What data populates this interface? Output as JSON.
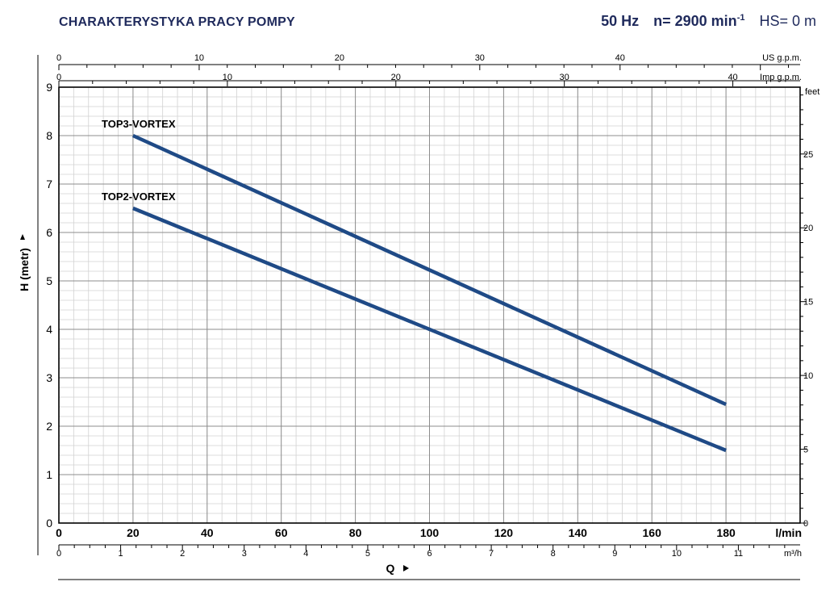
{
  "header": {
    "title": "CHARAKTERYSTYKA PRACY POMPY",
    "freq": "50 Hz",
    "speed_prefix": "n= 2900 min",
    "speed_exp": "-1",
    "hs": "HS= 0 m"
  },
  "chart_data": {
    "type": "line",
    "series": [
      {
        "name": "TOP3-VORTEX",
        "x": [
          20,
          180
        ],
        "y": [
          8.0,
          2.45
        ]
      },
      {
        "name": "TOP2-VORTEX",
        "x": [
          20,
          180
        ],
        "y": [
          6.5,
          1.5
        ]
      }
    ],
    "xlabel": "Q",
    "ylabel": "H (metr)",
    "xlim": [
      0,
      200
    ],
    "ylim": [
      0,
      9
    ],
    "x_unit": "l/min",
    "x_ticks": [
      "0",
      "20",
      "40",
      "60",
      "80",
      "100",
      "120",
      "140",
      "160",
      "180"
    ],
    "y_ticks": [
      "0",
      "1",
      "2",
      "3",
      "4",
      "5",
      "6",
      "7",
      "8",
      "9"
    ],
    "axis_us": {
      "unit": "US g.p.m.",
      "ticks": [
        "0",
        "10",
        "20",
        "30",
        "40"
      ],
      "values": [
        0,
        10,
        20,
        30,
        40
      ]
    },
    "axis_imp": {
      "unit": "Imp g.p.m.",
      "ticks": [
        "0",
        "10",
        "20",
        "30",
        "40"
      ],
      "values": [
        0,
        10,
        20,
        30,
        40
      ]
    },
    "axis_m3h": {
      "unit": "m³/h",
      "ticks": [
        "0",
        "1",
        "2",
        "3",
        "4",
        "5",
        "6",
        "7",
        "8",
        "9",
        "10",
        "11"
      ],
      "values": [
        0,
        1,
        2,
        3,
        4,
        5,
        6,
        7,
        8,
        9,
        10,
        11
      ]
    },
    "axis_feet": {
      "unit": "feet",
      "ticks": [
        "0",
        "5",
        "10",
        "15",
        "20",
        "25"
      ],
      "values": [
        0,
        5,
        10,
        15,
        20,
        25
      ]
    },
    "grid": true,
    "line_color": "#1f4a86"
  }
}
